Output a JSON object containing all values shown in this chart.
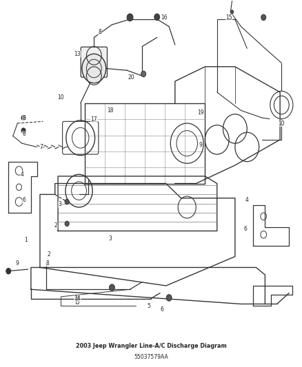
{
  "title": "2003 Jeep Wrangler Line-A/C Discharge Diagram",
  "part_number": "55037579AA",
  "background_color": "#ffffff",
  "line_color": "#333333",
  "text_color": "#222222",
  "fig_width": 4.38,
  "fig_height": 5.33,
  "dpi": 100
}
